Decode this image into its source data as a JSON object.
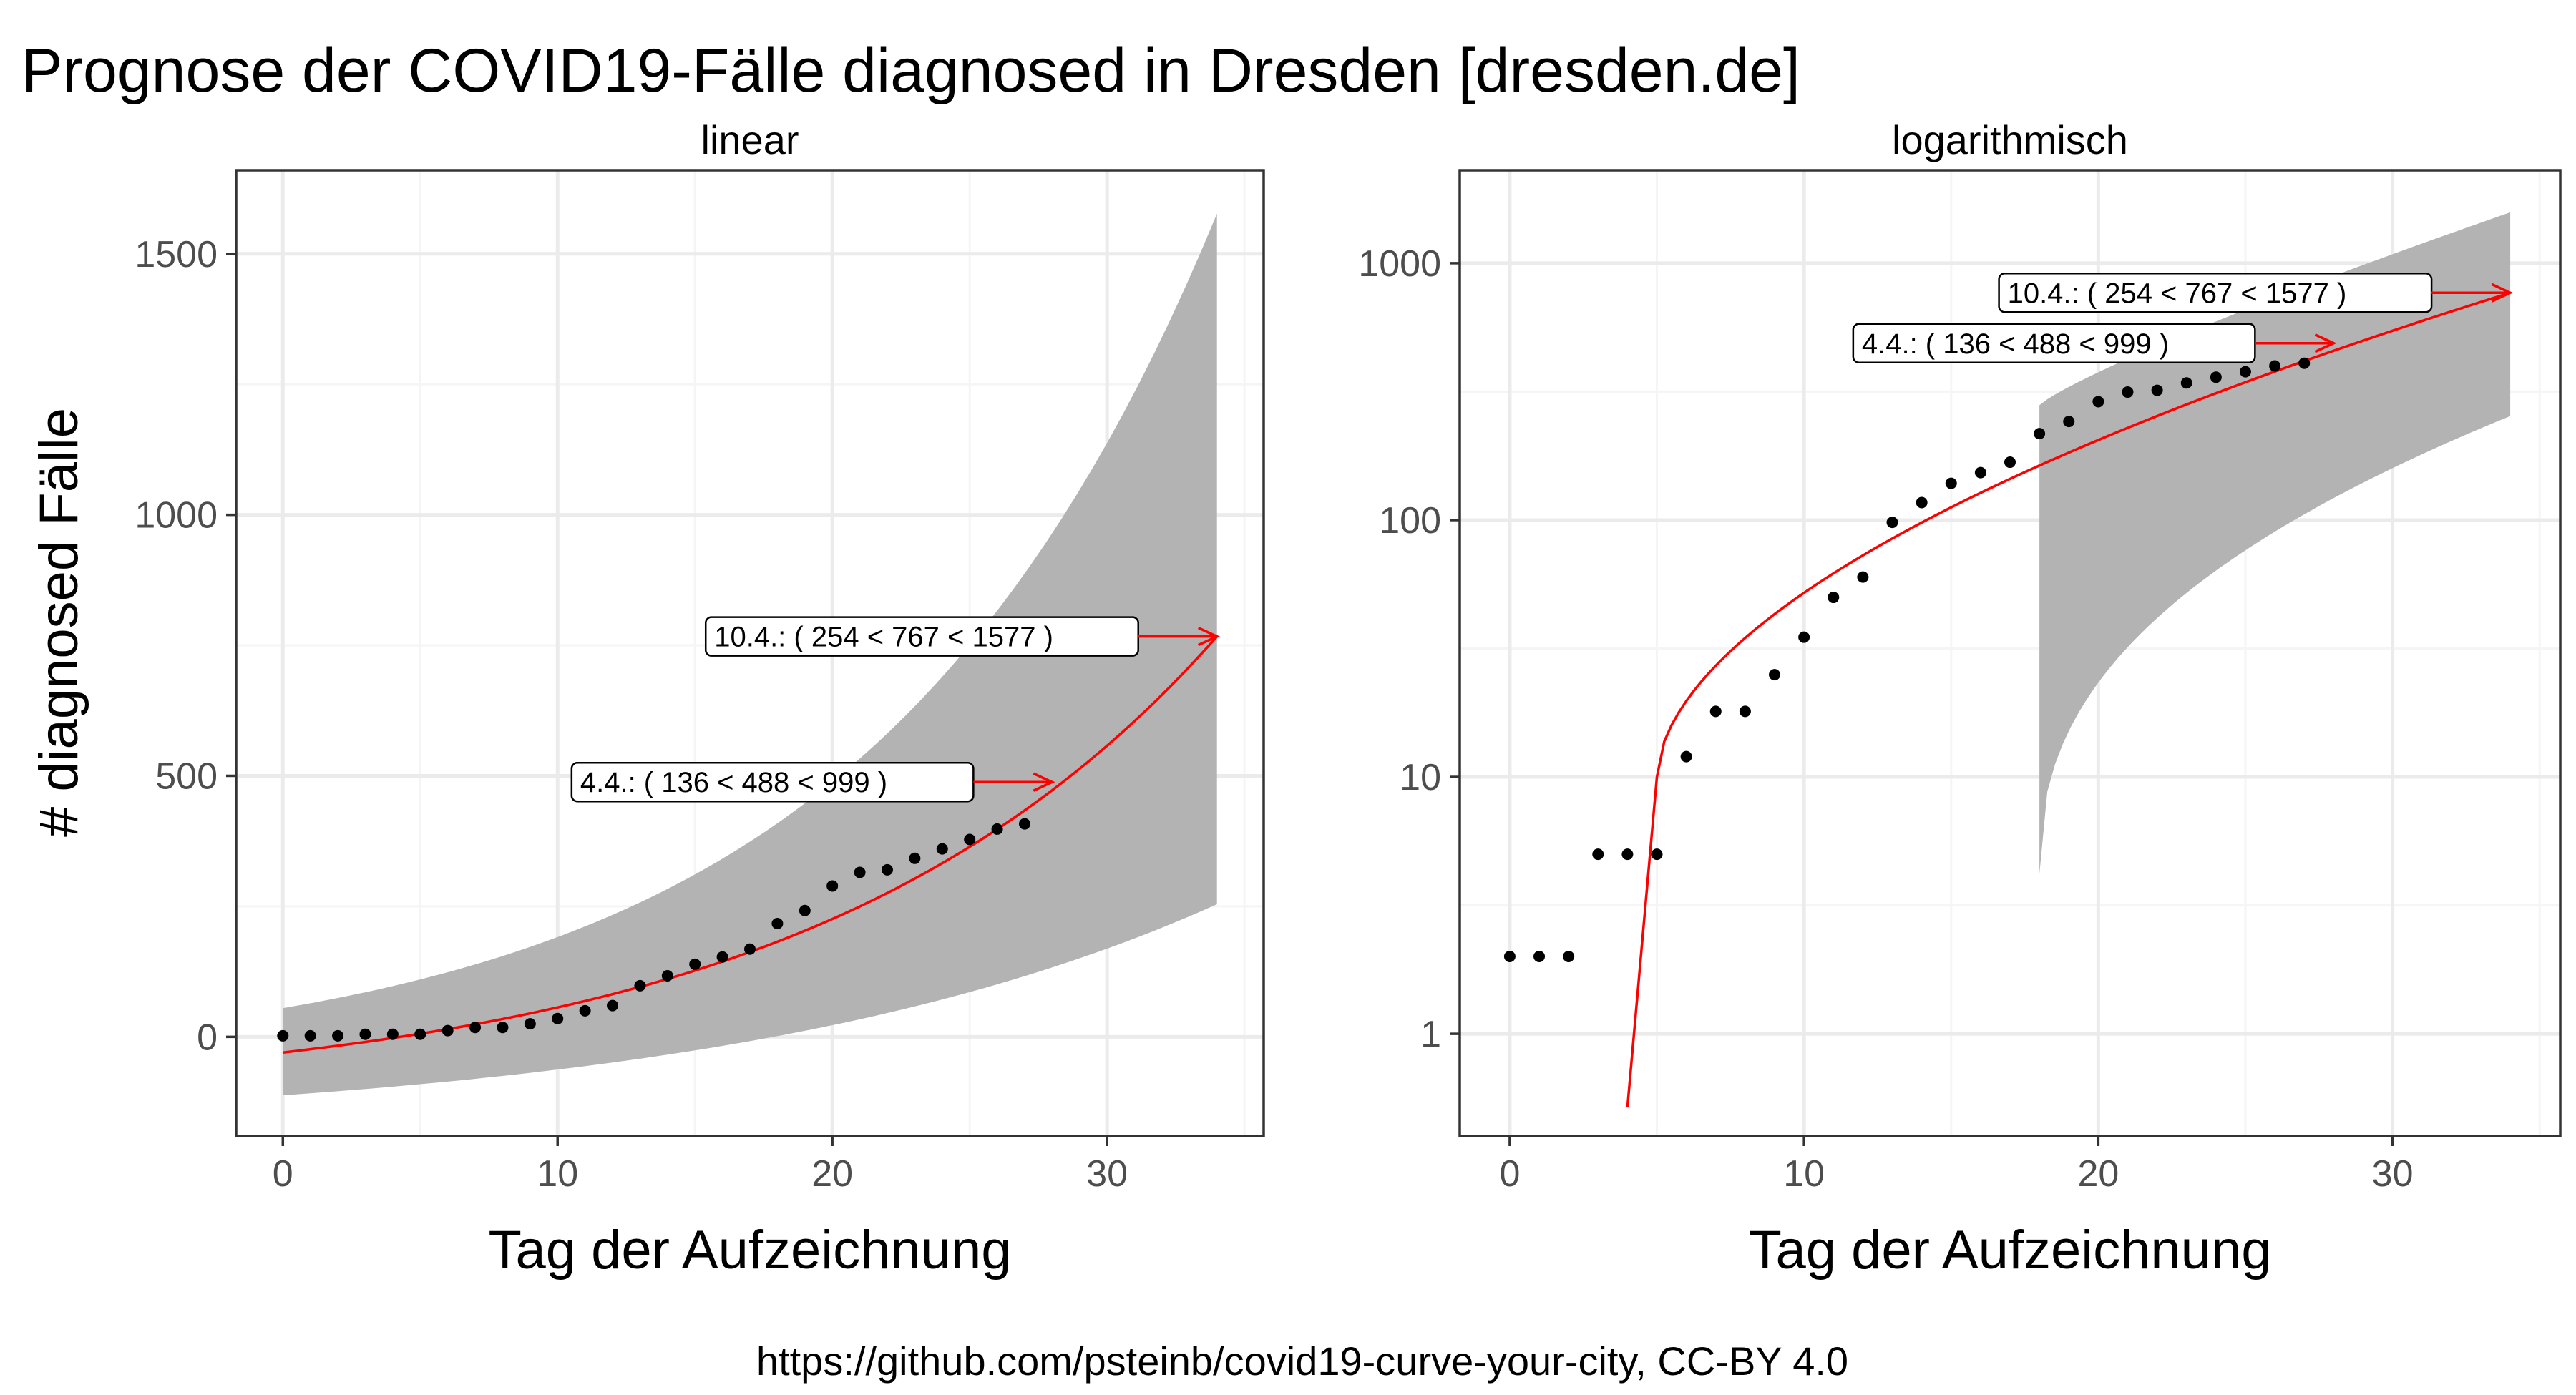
{
  "chart_data": {
    "title": "Prognose der COVID19-Fälle diagnosed in Dresden [dresden.de]",
    "caption": "https://github.com/psteinb/covid19-curve-your-city, CC-BY 4.0",
    "ylabel": "# diagnosed Fälle",
    "xlabel": "Tag der Aufzeichnung",
    "grid": true,
    "data_days": [
      0,
      1,
      2,
      3,
      4,
      5,
      6,
      7,
      8,
      9,
      10,
      11,
      12,
      13,
      14,
      15,
      16,
      17,
      18,
      19,
      20,
      21,
      22,
      23,
      24,
      25,
      26,
      27
    ],
    "data_cases": [
      2,
      2,
      2,
      5,
      5,
      5,
      12,
      18,
      18,
      25,
      35,
      50,
      60,
      98,
      117,
      139,
      153,
      168,
      217,
      242,
      289,
      315,
      320,
      342,
      360,
      378,
      398,
      408
    ],
    "fit_model": "exponential",
    "fit_line": {
      "x": [
        0,
        34
      ],
      "y": [
        -30,
        767
      ]
    },
    "band": {
      "x": [
        0,
        34
      ],
      "lower": [
        -112,
        254
      ],
      "upper": [
        55,
        1577
      ]
    },
    "panels": [
      {
        "name": "linear",
        "type": "scatter",
        "yscale": "linear",
        "xlim": [
          -1.7,
          35.7
        ],
        "ylim": [
          -190,
          1660
        ],
        "xticks": [
          0,
          10,
          20,
          30
        ],
        "yticks": [
          0,
          500,
          1000,
          1500
        ],
        "xtick_labels": [
          "0",
          "10",
          "20",
          "30"
        ],
        "ytick_labels": [
          "0",
          "500",
          "1000",
          "1500"
        ],
        "band_start_day": 0,
        "annotations": [
          {
            "text": "4.4.: ( 136 < 488 < 999 )",
            "x": 28,
            "y": 488
          },
          {
            "text": "10.4.: ( 254 < 767 < 1577 )",
            "x": 34,
            "y": 767
          }
        ]
      },
      {
        "name": "logarithmisch",
        "type": "scatter",
        "yscale": "log",
        "xlim": [
          -1.7,
          35.7
        ],
        "ylim": [
          0.4,
          2300
        ],
        "xticks": [
          0,
          10,
          20,
          30
        ],
        "yticks": [
          1,
          10,
          100,
          1000
        ],
        "xtick_labels": [
          "0",
          "10",
          "20",
          "30"
        ],
        "ytick_labels": [
          "1",
          "10",
          "100",
          "1000"
        ],
        "band_start_day": 18,
        "annotations": [
          {
            "text": "4.4.: ( 136 < 488 < 999 )",
            "x": 28,
            "y": 488
          },
          {
            "text": "10.4.: ( 254 < 767 < 1577 )",
            "x": 34,
            "y": 767
          }
        ]
      }
    ]
  },
  "colors": {
    "band": "#b3b3b3",
    "fit": "#ff0000",
    "points": "#000000",
    "grid_major": "#ebebeb",
    "grid_minor": "#f5f5f5",
    "panel_border": "#333333",
    "tick_text": "#4d4d4d"
  }
}
